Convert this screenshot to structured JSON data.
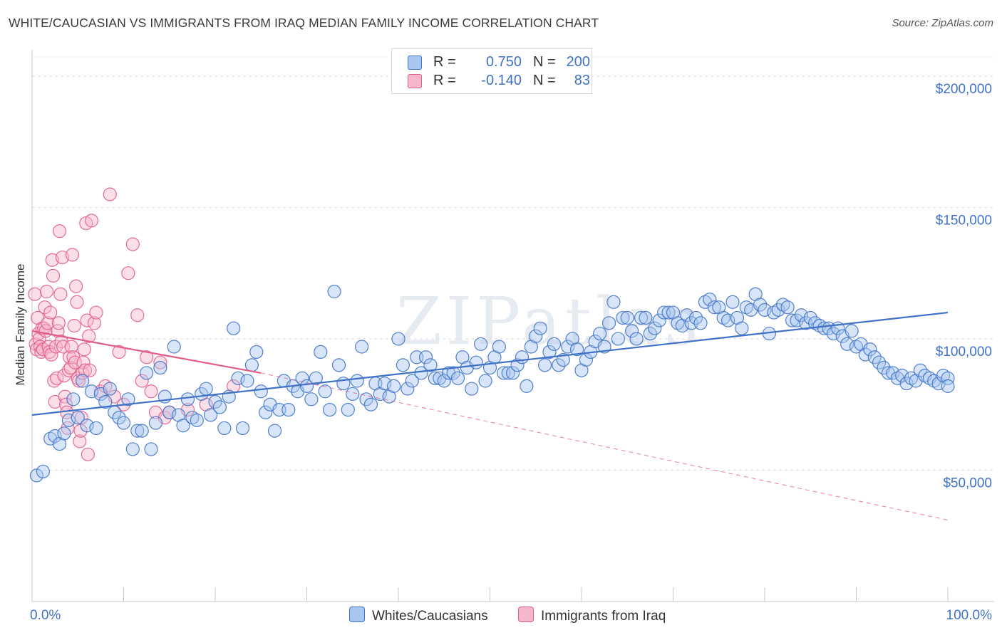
{
  "title": "WHITE/CAUCASIAN VS IMMIGRANTS FROM IRAQ MEDIAN FAMILY INCOME CORRELATION CHART",
  "source": "Source: ZipAtlas.com",
  "watermark": "ZIPatlas",
  "colors": {
    "blue": "#3f72c6",
    "blue_fill": "#a9c6ef",
    "pink": "#e25c8a",
    "pink_fill": "#f6b7cb"
  },
  "legend": {
    "rows": [
      {
        "r_label": "R =",
        "r_value": "0.750",
        "n_label": "N =",
        "n_value": "200"
      },
      {
        "r_label": "R =",
        "r_value": "-0.140",
        "n_label": "N =",
        "n_value": "83"
      }
    ]
  },
  "bottom_legend": {
    "blue": "Whites/Caucasians",
    "pink": "Immigrants from Iraq"
  },
  "chart_data": {
    "type": "scatter",
    "title": "WHITE/CAUCASIAN VS IMMIGRANTS FROM IRAQ MEDIAN FAMILY INCOME CORRELATION CHART",
    "xlabel": "",
    "ylabel": "Median Family Income",
    "xlim": [
      0,
      100
    ],
    "ylim": [
      0,
      210000
    ],
    "x_tick_labels": {
      "left": "0.0%",
      "right": "100.0%"
    },
    "y_ticks": [
      {
        "value": 50000,
        "label": "$50,000"
      },
      {
        "value": 100000,
        "label": "$100,000"
      },
      {
        "value": 150000,
        "label": "$150,000"
      },
      {
        "value": 200000,
        "label": "$200,000"
      }
    ],
    "series": [
      {
        "name": "Whites/Caucasians",
        "r": 0.75,
        "n": 200,
        "trend": {
          "x": [
            0,
            100
          ],
          "y": [
            71000,
            110000
          ],
          "dashed_extension": false
        },
        "points": [
          [
            0.5,
            48000
          ],
          [
            1.2,
            49500
          ],
          [
            2,
            62000
          ],
          [
            2.5,
            63000
          ],
          [
            3,
            60000
          ],
          [
            3.5,
            64000
          ],
          [
            4,
            69000
          ],
          [
            4.5,
            77000
          ],
          [
            5,
            70000
          ],
          [
            5.5,
            84000
          ],
          [
            6,
            67000
          ],
          [
            6.5,
            80000
          ],
          [
            7,
            66000
          ],
          [
            7.5,
            79000
          ],
          [
            8,
            76000
          ],
          [
            8.5,
            81000
          ],
          [
            9,
            72000
          ],
          [
            9.5,
            70000
          ],
          [
            10,
            68000
          ],
          [
            10.5,
            77000
          ],
          [
            11,
            58000
          ],
          [
            11.5,
            65000
          ],
          [
            12,
            65000
          ],
          [
            12.5,
            87000
          ],
          [
            13,
            58000
          ],
          [
            13.5,
            68000
          ],
          [
            14,
            89000
          ],
          [
            14.5,
            78000
          ],
          [
            15,
            72000
          ],
          [
            15.5,
            97000
          ],
          [
            16,
            71000
          ],
          [
            16.5,
            67000
          ],
          [
            17,
            77000
          ],
          [
            17.5,
            70000
          ],
          [
            18,
            69000
          ],
          [
            18.5,
            79000
          ],
          [
            19,
            81000
          ],
          [
            19.5,
            71000
          ],
          [
            20,
            76000
          ],
          [
            20.5,
            74000
          ],
          [
            21,
            66000
          ],
          [
            21.5,
            78000
          ],
          [
            22,
            104000
          ],
          [
            22.5,
            85000
          ],
          [
            23,
            66000
          ],
          [
            23.5,
            84000
          ],
          [
            24,
            90000
          ],
          [
            24.5,
            95000
          ],
          [
            25,
            80000
          ],
          [
            25.5,
            72000
          ],
          [
            26,
            75000
          ],
          [
            26.5,
            65000
          ],
          [
            27,
            73000
          ],
          [
            27.5,
            84000
          ],
          [
            28,
            73000
          ],
          [
            28.5,
            82000
          ],
          [
            29,
            80000
          ],
          [
            29.5,
            85000
          ],
          [
            30,
            82000
          ],
          [
            30.5,
            77000
          ],
          [
            31,
            85000
          ],
          [
            31.5,
            95000
          ],
          [
            32,
            80000
          ],
          [
            32.5,
            73000
          ],
          [
            33,
            118000
          ],
          [
            33.5,
            90000
          ],
          [
            34,
            83000
          ],
          [
            34.5,
            73000
          ],
          [
            35,
            79000
          ],
          [
            35.5,
            84000
          ],
          [
            36,
            97000
          ],
          [
            36.5,
            77000
          ],
          [
            37,
            75000
          ],
          [
            37.5,
            83000
          ],
          [
            38,
            79000
          ],
          [
            38.5,
            83000
          ],
          [
            39,
            78000
          ],
          [
            39.5,
            82000
          ],
          [
            40,
            100000
          ],
          [
            40.5,
            90000
          ],
          [
            41,
            81000
          ],
          [
            41.5,
            84000
          ],
          [
            42,
            93000
          ],
          [
            42.5,
            87000
          ],
          [
            43,
            93000
          ],
          [
            43.5,
            90000
          ],
          [
            44,
            85000
          ],
          [
            44.5,
            85000
          ],
          [
            45,
            84000
          ],
          [
            45.5,
            87000
          ],
          [
            46,
            87000
          ],
          [
            46.5,
            85000
          ],
          [
            47,
            93000
          ],
          [
            47.5,
            89000
          ],
          [
            48,
            81000
          ],
          [
            48.5,
            91000
          ],
          [
            49,
            98000
          ],
          [
            49.5,
            84000
          ],
          [
            50,
            89000
          ],
          [
            50.5,
            93000
          ],
          [
            51,
            97000
          ],
          [
            51.5,
            87000
          ],
          [
            52,
            87000
          ],
          [
            52.5,
            87000
          ],
          [
            53,
            90000
          ],
          [
            53.5,
            93000
          ],
          [
            54,
            82000
          ],
          [
            54.5,
            97000
          ],
          [
            55,
            101000
          ],
          [
            55.5,
            104000
          ],
          [
            56,
            90000
          ],
          [
            56.5,
            95000
          ],
          [
            57,
            98000
          ],
          [
            57.5,
            90000
          ],
          [
            58,
            92000
          ],
          [
            58.5,
            97000
          ],
          [
            59,
            100000
          ],
          [
            59.5,
            96000
          ],
          [
            60,
            88000
          ],
          [
            60.5,
            92000
          ],
          [
            61,
            95000
          ],
          [
            61.5,
            99000
          ],
          [
            62,
            102000
          ],
          [
            62.5,
            97000
          ],
          [
            63,
            106000
          ],
          [
            63.5,
            114000
          ],
          [
            64,
            100000
          ],
          [
            64.5,
            108000
          ],
          [
            65,
            108000
          ],
          [
            65.5,
            103000
          ],
          [
            66,
            100000
          ],
          [
            66.5,
            108000
          ],
          [
            67,
            108000
          ],
          [
            67.5,
            102000
          ],
          [
            68,
            104000
          ],
          [
            68.5,
            107000
          ],
          [
            69,
            110000
          ],
          [
            69.5,
            110000
          ],
          [
            70,
            110000
          ],
          [
            70.5,
            106000
          ],
          [
            71,
            105000
          ],
          [
            71.5,
            109000
          ],
          [
            72,
            106000
          ],
          [
            72.5,
            108000
          ],
          [
            73,
            106000
          ],
          [
            73.5,
            114000
          ],
          [
            74,
            115000
          ],
          [
            74.5,
            112000
          ],
          [
            75,
            112000
          ],
          [
            75.5,
            108000
          ],
          [
            76,
            107000
          ],
          [
            76.5,
            114000
          ],
          [
            77,
            108000
          ],
          [
            77.5,
            104000
          ],
          [
            78,
            112000
          ],
          [
            78.5,
            111000
          ],
          [
            79,
            117000
          ],
          [
            79.5,
            113000
          ],
          [
            80,
            111000
          ],
          [
            80.5,
            102000
          ],
          [
            81,
            110000
          ],
          [
            81.5,
            111000
          ],
          [
            82,
            113000
          ],
          [
            82.5,
            112000
          ],
          [
            83,
            107000
          ],
          [
            83.5,
            107000
          ],
          [
            84,
            109000
          ],
          [
            84.5,
            106000
          ],
          [
            85,
            108000
          ],
          [
            85.5,
            106000
          ],
          [
            86,
            105000
          ],
          [
            86.5,
            104000
          ],
          [
            87,
            104000
          ],
          [
            87.5,
            102000
          ],
          [
            88,
            104000
          ],
          [
            88.5,
            101000
          ],
          [
            89,
            98000
          ],
          [
            89.5,
            103000
          ],
          [
            90,
            97000
          ],
          [
            90.5,
            98000
          ],
          [
            91,
            94000
          ],
          [
            91.5,
            96000
          ],
          [
            92,
            93000
          ],
          [
            92.5,
            91000
          ],
          [
            93,
            89000
          ],
          [
            93.5,
            87000
          ],
          [
            94,
            87000
          ],
          [
            94.5,
            85000
          ],
          [
            95,
            86000
          ],
          [
            95.5,
            83000
          ],
          [
            96,
            85000
          ],
          [
            96.5,
            84000
          ],
          [
            97,
            88000
          ],
          [
            97.5,
            86000
          ],
          [
            98,
            85000
          ],
          [
            98.5,
            84000
          ],
          [
            99,
            83000
          ],
          [
            99.5,
            86000
          ],
          [
            100,
            85000
          ],
          [
            100,
            82000
          ]
        ]
      },
      {
        "name": "Immigrants from Iraq",
        "r": -0.14,
        "n": 83,
        "trend": {
          "x": [
            0,
            25
          ],
          "y": [
            103000,
            87000
          ],
          "dashed_extension": {
            "x": [
              25,
              100
            ],
            "y": [
              87000,
              31000
            ]
          }
        },
        "points": [
          [
            0.3,
            117000
          ],
          [
            0.4,
            98000
          ],
          [
            0.5,
            96000
          ],
          [
            0.6,
            108000
          ],
          [
            0.7,
            102000
          ],
          [
            0.8,
            100000
          ],
          [
            0.9,
            97000
          ],
          [
            1.0,
            95000
          ],
          [
            1.1,
            104000
          ],
          [
            1.2,
            96000
          ],
          [
            1.3,
            104000
          ],
          [
            1.4,
            112000
          ],
          [
            1.5,
            103000
          ],
          [
            1.6,
            118000
          ],
          [
            1.7,
            106000
          ],
          [
            1.8,
            97000
          ],
          [
            1.9,
            95000
          ],
          [
            2.0,
            110000
          ],
          [
            2.1,
            94000
          ],
          [
            2.2,
            130000
          ],
          [
            2.3,
            124000
          ],
          [
            2.4,
            84000
          ],
          [
            2.5,
            76000
          ],
          [
            2.6,
            97000
          ],
          [
            2.7,
            85000
          ],
          [
            2.8,
            103000
          ],
          [
            2.9,
            106000
          ],
          [
            3.0,
            141000
          ],
          [
            3.1,
            117000
          ],
          [
            3.2,
            99000
          ],
          [
            3.3,
            131000
          ],
          [
            3.4,
            97000
          ],
          [
            3.5,
            86000
          ],
          [
            3.6,
            78000
          ],
          [
            3.7,
            75000
          ],
          [
            3.8,
            72000
          ],
          [
            3.9,
            66000
          ],
          [
            4.0,
            88000
          ],
          [
            4.1,
            93000
          ],
          [
            4.2,
            89000
          ],
          [
            4.3,
            97000
          ],
          [
            4.4,
            132000
          ],
          [
            4.5,
            93000
          ],
          [
            4.6,
            105000
          ],
          [
            4.7,
            91000
          ],
          [
            4.8,
            120000
          ],
          [
            4.9,
            114000
          ],
          [
            5.0,
            85000
          ],
          [
            5.1,
            84000
          ],
          [
            5.2,
            61000
          ],
          [
            5.3,
            65000
          ],
          [
            5.4,
            70000
          ],
          [
            5.5,
            87000
          ],
          [
            5.6,
            91000
          ],
          [
            5.7,
            96000
          ],
          [
            5.8,
            88000
          ],
          [
            5.9,
            144000
          ],
          [
            6.0,
            107000
          ],
          [
            6.1,
            56000
          ],
          [
            6.2,
            101000
          ],
          [
            6.3,
            88000
          ],
          [
            6.5,
            145000
          ],
          [
            6.8,
            106000
          ],
          [
            7,
            110000
          ],
          [
            7.5,
            80000
          ],
          [
            8,
            82000
          ],
          [
            8.5,
            155000
          ],
          [
            9,
            78000
          ],
          [
            9.5,
            95000
          ],
          [
            10,
            75000
          ],
          [
            10.5,
            125000
          ],
          [
            11,
            136000
          ],
          [
            11.5,
            109000
          ],
          [
            12,
            84000
          ],
          [
            12.5,
            93000
          ],
          [
            13,
            80000
          ],
          [
            13.5,
            72000
          ],
          [
            14,
            91000
          ],
          [
            14.5,
            70000
          ],
          [
            15,
            72000
          ],
          [
            17,
            73000
          ],
          [
            19,
            75000
          ],
          [
            22,
            82000
          ]
        ]
      }
    ]
  }
}
